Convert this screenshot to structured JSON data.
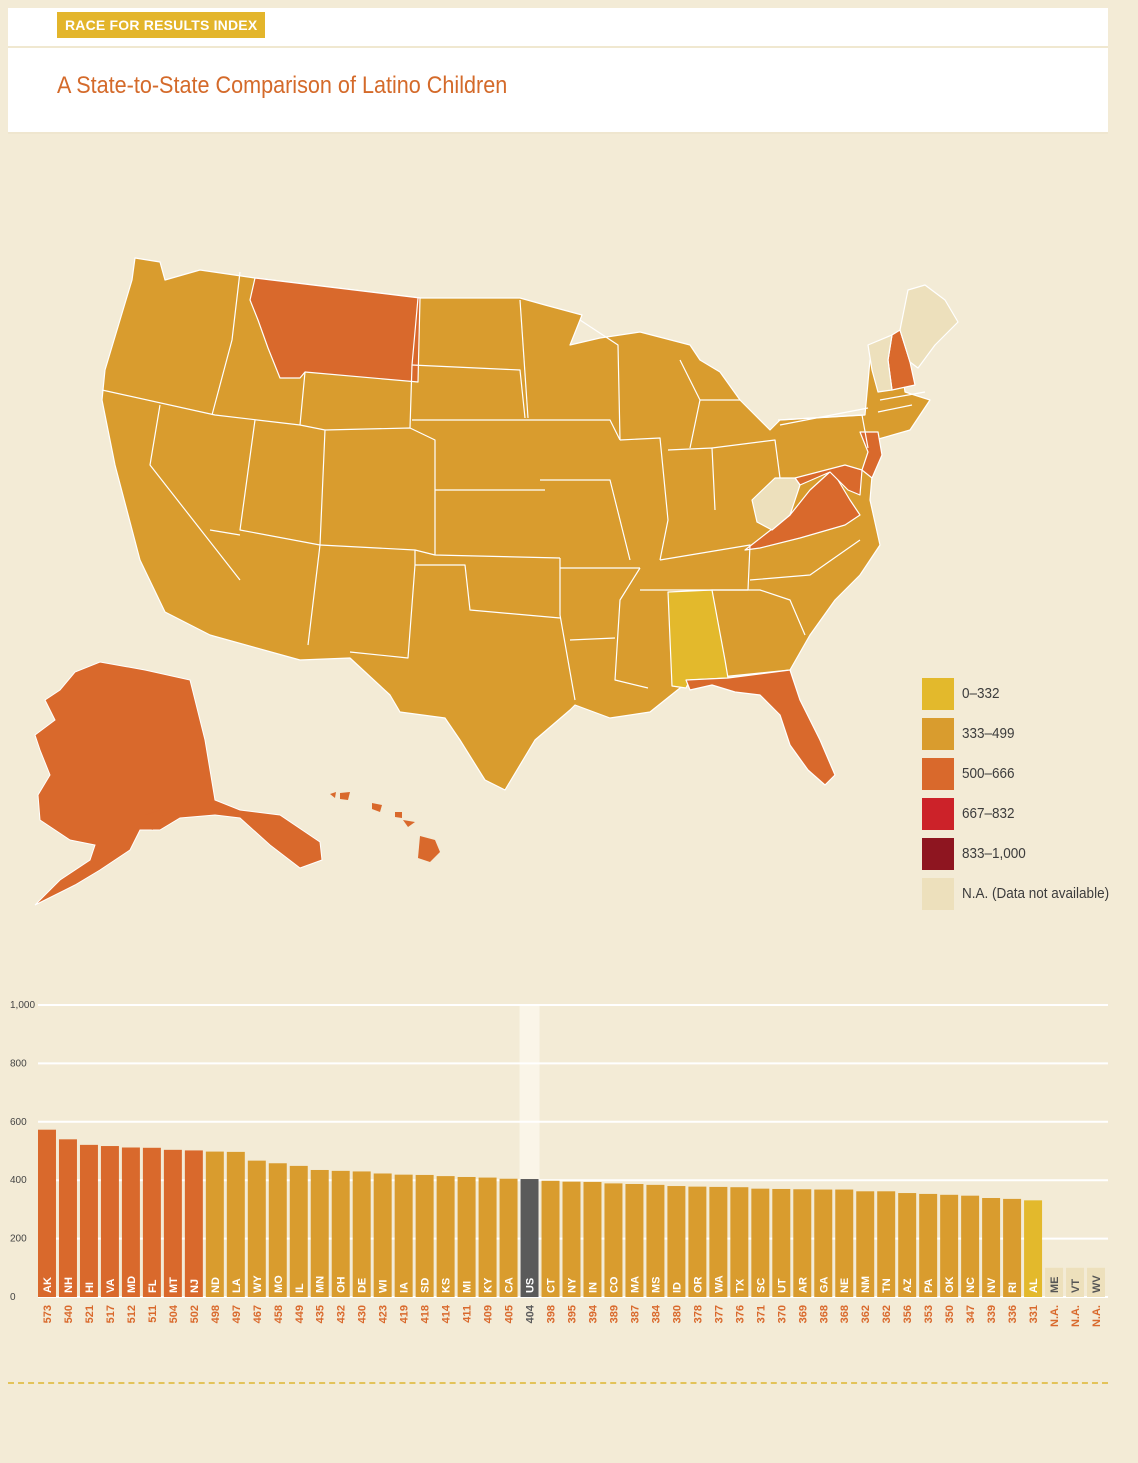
{
  "header": {
    "tag": "RACE FOR RESULTS INDEX",
    "title": "A State-to-State Comparison of Latino Children"
  },
  "colors": {
    "bin_0_332": "#e3b92c",
    "bin_333_499": "#d99c2e",
    "bin_500_666": "#d9692c",
    "bin_667_832": "#cc2229",
    "bin_833_1000": "#8e1520",
    "na": "#ede0bc",
    "us": "#5a5a5a",
    "background": "#f3ebd6"
  },
  "legend": [
    {
      "label": "0–332",
      "color": "#e3b92c"
    },
    {
      "label": "333–499",
      "color": "#d99c2e"
    },
    {
      "label": "500–666",
      "color": "#d9692c"
    },
    {
      "label": "667–832",
      "color": "#cc2229"
    },
    {
      "label": "833–1,000",
      "color": "#8e1520"
    },
    {
      "label": "N.A. (Data not available)",
      "color": "#ede0bc"
    }
  ],
  "chart_data": [
    {
      "type": "choropleth-map",
      "regions": {
        "AK": 573,
        "NH": 540,
        "HI": 521,
        "VA": 517,
        "MD": 512,
        "FL": 511,
        "MT": 504,
        "NJ": 502,
        "AL": 331,
        "ME": null,
        "VT": null,
        "WV": null
      },
      "default_bin": "333–499"
    },
    {
      "type": "bar",
      "ylim": [
        0,
        1000
      ],
      "yticks": [
        "0",
        "200",
        "400",
        "600",
        "800",
        "1,000"
      ],
      "grid": true,
      "categories": [
        "AK",
        "NH",
        "HI",
        "VA",
        "MD",
        "FL",
        "MT",
        "NJ",
        "ND",
        "LA",
        "WY",
        "MO",
        "IL",
        "MN",
        "OH",
        "DE",
        "WI",
        "IA",
        "SD",
        "KS",
        "MI",
        "KY",
        "CA",
        "US",
        "CT",
        "NY",
        "IN",
        "CO",
        "MA",
        "MS",
        "ID",
        "OR",
        "WA",
        "TX",
        "SC",
        "UT",
        "AR",
        "GA",
        "NE",
        "NM",
        "TN",
        "AZ",
        "PA",
        "OK",
        "NC",
        "NV",
        "RI",
        "AL",
        "ME",
        "VT",
        "WV"
      ],
      "values": [
        573,
        540,
        521,
        517,
        512,
        511,
        504,
        502,
        498,
        497,
        467,
        458,
        449,
        435,
        432,
        430,
        423,
        419,
        418,
        414,
        411,
        409,
        405,
        404,
        398,
        395,
        394,
        389,
        387,
        384,
        380,
        378,
        377,
        376,
        371,
        370,
        369,
        368,
        368,
        362,
        362,
        356,
        353,
        350,
        347,
        339,
        336,
        331,
        null,
        null,
        null
      ],
      "value_labels": [
        "573",
        "540",
        "521",
        "517",
        "512",
        "511",
        "504",
        "502",
        "498",
        "497",
        "467",
        "458",
        "449",
        "435",
        "432",
        "430",
        "423",
        "419",
        "418",
        "414",
        "411",
        "409",
        "405",
        "404",
        "398",
        "395",
        "394",
        "389",
        "387",
        "384",
        "380",
        "378",
        "377",
        "376",
        "371",
        "370",
        "369",
        "368",
        "368",
        "362",
        "362",
        "356",
        "353",
        "350",
        "347",
        "339",
        "336",
        "331",
        "N.A.",
        "N.A.",
        "N.A."
      ],
      "highlight": "US"
    }
  ]
}
